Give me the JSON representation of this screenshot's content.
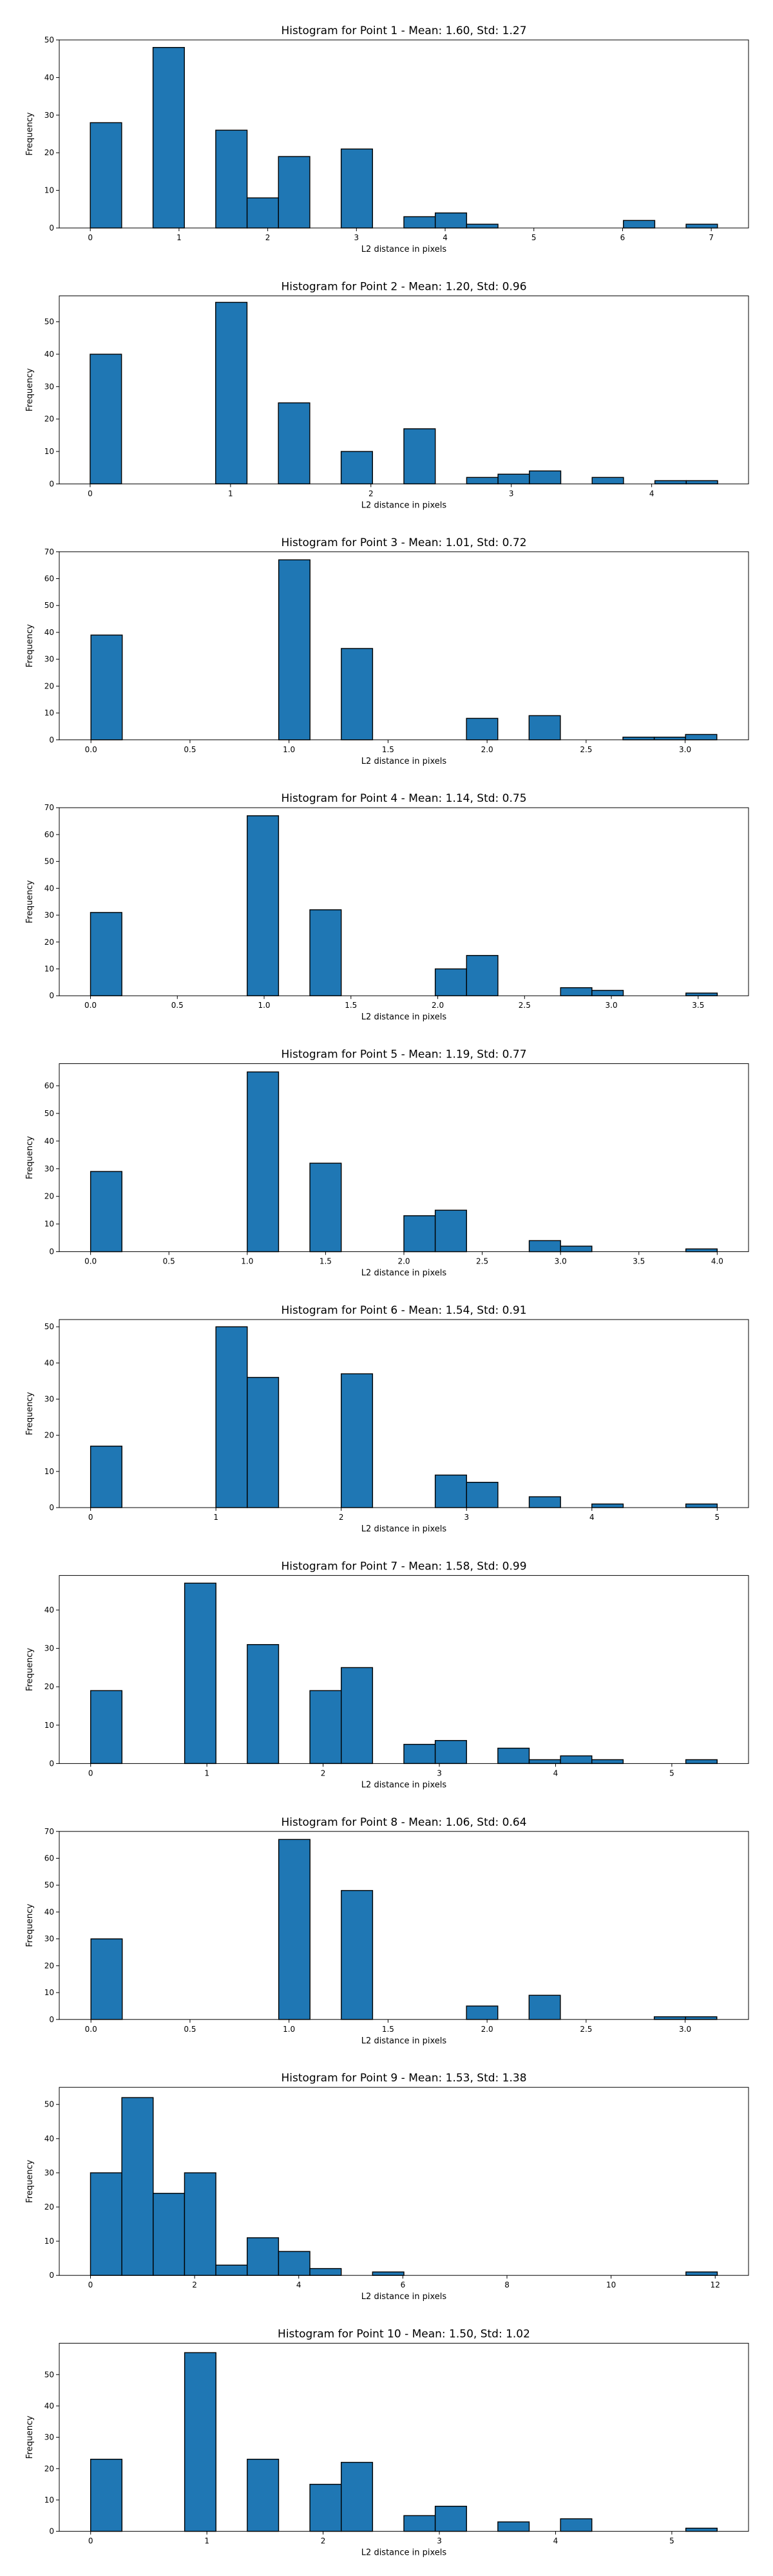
{
  "figure": {
    "bar_color": "#1f77b4",
    "edge_color": "#000000",
    "background": "#ffffff"
  },
  "chart_data": [
    {
      "type": "bar",
      "title": "Histogram for Point 1 - Mean: 1.60, Std: 1.27",
      "xlabel": "L2 distance in pixels",
      "ylabel": "Frequency",
      "bin_range": [
        0,
        7.07
      ],
      "xlim": [
        -0.35,
        7.42
      ],
      "ylim": [
        0,
        50
      ],
      "xticks": [
        0,
        1,
        2,
        3,
        4,
        5,
        6,
        7
      ],
      "xtick_labels": [
        "0",
        "1",
        "2",
        "3",
        "4",
        "5",
        "6",
        "7"
      ],
      "yticks": [
        0,
        10,
        20,
        30,
        40,
        50
      ],
      "ytick_labels": [
        "0",
        "10",
        "20",
        "30",
        "40",
        "50"
      ],
      "values": [
        28,
        0,
        48,
        0,
        26,
        8,
        19,
        0,
        21,
        0,
        3,
        4,
        1,
        0,
        0,
        0,
        0,
        2,
        0,
        1
      ]
    },
    {
      "type": "bar",
      "title": "Histogram for Point 2 - Mean: 1.20, Std: 0.96",
      "xlabel": "L2 distance in pixels",
      "ylabel": "Frequency",
      "bin_range": [
        0,
        4.47
      ],
      "xlim": [
        -0.22,
        4.69
      ],
      "ylim": [
        0,
        58
      ],
      "xticks": [
        0,
        1,
        2,
        3,
        4
      ],
      "xtick_labels": [
        "0",
        "1",
        "2",
        "3",
        "4"
      ],
      "yticks": [
        0,
        10,
        20,
        30,
        40,
        50
      ],
      "ytick_labels": [
        "0",
        "10",
        "20",
        "30",
        "40",
        "50"
      ],
      "values": [
        40,
        0,
        0,
        0,
        56,
        0,
        25,
        0,
        10,
        0,
        17,
        0,
        2,
        3,
        4,
        0,
        2,
        0,
        1,
        1
      ]
    },
    {
      "type": "bar",
      "title": "Histogram for Point 3 - Mean: 1.01, Std: 0.72",
      "xlabel": "L2 distance in pixels",
      "ylabel": "Frequency",
      "bin_range": [
        0,
        3.16
      ],
      "xlim": [
        -0.16,
        3.32
      ],
      "ylim": [
        0,
        70
      ],
      "xticks": [
        0,
        0.5,
        1,
        1.5,
        2,
        2.5,
        3
      ],
      "xtick_labels": [
        "0.0",
        "0.5",
        "1.0",
        "1.5",
        "2.0",
        "2.5",
        "3.0"
      ],
      "yticks": [
        0,
        10,
        20,
        30,
        40,
        50,
        60,
        70
      ],
      "ytick_labels": [
        "0",
        "10",
        "20",
        "30",
        "40",
        "50",
        "60",
        "70"
      ],
      "values": [
        39,
        0,
        0,
        0,
        0,
        0,
        67,
        0,
        34,
        0,
        0,
        0,
        8,
        0,
        9,
        0,
        0,
        1,
        1,
        2
      ]
    },
    {
      "type": "bar",
      "title": "Histogram for Point 4 - Mean: 1.14, Std: 0.75",
      "xlabel": "L2 distance in pixels",
      "ylabel": "Frequency",
      "bin_range": [
        0,
        3.61
      ],
      "xlim": [
        -0.18,
        3.79
      ],
      "ylim": [
        0,
        70
      ],
      "xticks": [
        0,
        0.5,
        1,
        1.5,
        2,
        2.5,
        3,
        3.5
      ],
      "xtick_labels": [
        "0.0",
        "0.5",
        "1.0",
        "1.5",
        "2.0",
        "2.5",
        "3.0",
        "3.5"
      ],
      "yticks": [
        0,
        10,
        20,
        30,
        40,
        50,
        60,
        70
      ],
      "ytick_labels": [
        "0",
        "10",
        "20",
        "30",
        "40",
        "50",
        "60",
        "70"
      ],
      "values": [
        31,
        0,
        0,
        0,
        0,
        67,
        0,
        32,
        0,
        0,
        0,
        10,
        15,
        0,
        0,
        3,
        2,
        0,
        0,
        1
      ]
    },
    {
      "type": "bar",
      "title": "Histogram for Point 5 - Mean: 1.19, Std: 0.77",
      "xlabel": "L2 distance in pixels",
      "ylabel": "Frequency",
      "bin_range": [
        0,
        4.0
      ],
      "xlim": [
        -0.2,
        4.2
      ],
      "ylim": [
        0,
        68
      ],
      "xticks": [
        0,
        0.5,
        1,
        1.5,
        2,
        2.5,
        3,
        3.5,
        4
      ],
      "xtick_labels": [
        "0.0",
        "0.5",
        "1.0",
        "1.5",
        "2.0",
        "2.5",
        "3.0",
        "3.5",
        "4.0"
      ],
      "yticks": [
        0,
        10,
        20,
        30,
        40,
        50,
        60
      ],
      "ytick_labels": [
        "0",
        "10",
        "20",
        "30",
        "40",
        "50",
        "60"
      ],
      "values": [
        29,
        0,
        0,
        0,
        0,
        65,
        0,
        32,
        0,
        0,
        13,
        15,
        0,
        0,
        4,
        2,
        0,
        0,
        0,
        1
      ]
    },
    {
      "type": "bar",
      "title": "Histogram for Point 6 - Mean: 1.54, Std: 0.91",
      "xlabel": "L2 distance in pixels",
      "ylabel": "Frequency",
      "bin_range": [
        0,
        5.0
      ],
      "xlim": [
        -0.25,
        5.25
      ],
      "ylim": [
        0,
        52
      ],
      "xticks": [
        0,
        1,
        2,
        3,
        4,
        5
      ],
      "xtick_labels": [
        "0",
        "1",
        "2",
        "3",
        "4",
        "5"
      ],
      "yticks": [
        0,
        10,
        20,
        30,
        40,
        50
      ],
      "ytick_labels": [
        "0",
        "10",
        "20",
        "30",
        "40",
        "50"
      ],
      "values": [
        17,
        0,
        0,
        0,
        50,
        36,
        0,
        0,
        37,
        0,
        0,
        9,
        7,
        0,
        3,
        0,
        1,
        0,
        0,
        1
      ]
    },
    {
      "type": "bar",
      "title": "Histogram for Point 7 - Mean: 1.58, Std: 0.99",
      "xlabel": "L2 distance in pixels",
      "ylabel": "Frequency",
      "bin_range": [
        0,
        5.39
      ],
      "xlim": [
        -0.27,
        5.66
      ],
      "ylim": [
        0,
        49
      ],
      "xticks": [
        0,
        1,
        2,
        3,
        4,
        5
      ],
      "xtick_labels": [
        "0",
        "1",
        "2",
        "3",
        "4",
        "5"
      ],
      "yticks": [
        0,
        10,
        20,
        30,
        40
      ],
      "ytick_labels": [
        "0",
        "10",
        "20",
        "30",
        "40"
      ],
      "values": [
        19,
        0,
        0,
        47,
        0,
        31,
        0,
        19,
        25,
        0,
        5,
        6,
        0,
        4,
        1,
        2,
        1,
        0,
        0,
        1
      ]
    },
    {
      "type": "bar",
      "title": "Histogram for Point 8 - Mean: 1.06, Std: 0.64",
      "xlabel": "L2 distance in pixels",
      "ylabel": "Frequency",
      "bin_range": [
        0,
        3.16
      ],
      "xlim": [
        -0.16,
        3.32
      ],
      "ylim": [
        0,
        70
      ],
      "xticks": [
        0,
        0.5,
        1,
        1.5,
        2,
        2.5,
        3
      ],
      "xtick_labels": [
        "0.0",
        "0.5",
        "1.0",
        "1.5",
        "2.0",
        "2.5",
        "3.0"
      ],
      "yticks": [
        0,
        10,
        20,
        30,
        40,
        50,
        60,
        70
      ],
      "ytick_labels": [
        "0",
        "10",
        "20",
        "30",
        "40",
        "50",
        "60",
        "70"
      ],
      "values": [
        30,
        0,
        0,
        0,
        0,
        0,
        67,
        0,
        48,
        0,
        0,
        0,
        5,
        0,
        9,
        0,
        0,
        0,
        1,
        1
      ]
    },
    {
      "type": "bar",
      "title": "Histogram for Point 9 - Mean: 1.53, Std: 1.38",
      "xlabel": "L2 distance in pixels",
      "ylabel": "Frequency",
      "bin_range": [
        0,
        12.04
      ],
      "xlim": [
        -0.6,
        12.64
      ],
      "ylim": [
        0,
        55
      ],
      "xticks": [
        0,
        2,
        4,
        6,
        8,
        10,
        12
      ],
      "xtick_labels": [
        "0",
        "2",
        "4",
        "6",
        "8",
        "10",
        "12"
      ],
      "yticks": [
        0,
        10,
        20,
        30,
        40,
        50
      ],
      "ytick_labels": [
        "0",
        "10",
        "20",
        "30",
        "40",
        "50"
      ],
      "values": [
        30,
        52,
        24,
        30,
        3,
        11,
        7,
        2,
        0,
        1,
        0,
        0,
        0,
        0,
        0,
        0,
        0,
        0,
        0,
        1
      ]
    },
    {
      "type": "bar",
      "title": "Histogram for Point 10 - Mean: 1.50, Std: 1.02",
      "xlabel": "L2 distance in pixels",
      "ylabel": "Frequency",
      "bin_range": [
        0,
        5.39
      ],
      "xlim": [
        -0.27,
        5.66
      ],
      "ylim": [
        0,
        60
      ],
      "xticks": [
        0,
        1,
        2,
        3,
        4,
        5
      ],
      "xtick_labels": [
        "0",
        "1",
        "2",
        "3",
        "4",
        "5"
      ],
      "yticks": [
        0,
        10,
        20,
        30,
        40,
        50
      ],
      "ytick_labels": [
        "0",
        "10",
        "20",
        "30",
        "40",
        "50"
      ],
      "values": [
        23,
        0,
        0,
        57,
        0,
        23,
        0,
        15,
        22,
        0,
        5,
        8,
        0,
        3,
        0,
        4,
        0,
        0,
        0,
        1
      ]
    }
  ]
}
